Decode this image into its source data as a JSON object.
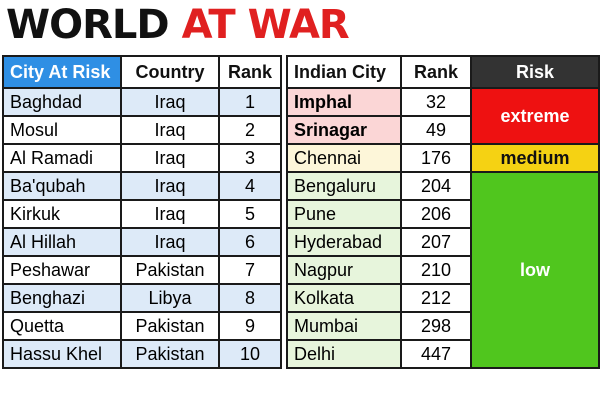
{
  "title": {
    "part1": "WORLD",
    "part2": "AT WAR"
  },
  "left_table": {
    "headers": {
      "city": "City At Risk",
      "country": "Country",
      "rank": "Rank"
    },
    "rows": [
      {
        "city": "Baghdad",
        "country": "Iraq",
        "rank": "1"
      },
      {
        "city": "Mosul",
        "country": "Iraq",
        "rank": "2"
      },
      {
        "city": "Al Ramadi",
        "country": "Iraq",
        "rank": "3"
      },
      {
        "city": "Ba'qubah",
        "country": "Iraq",
        "rank": "4"
      },
      {
        "city": "Kirkuk",
        "country": "Iraq",
        "rank": "5"
      },
      {
        "city": "Al Hillah",
        "country": "Iraq",
        "rank": "6"
      },
      {
        "city": "Peshawar",
        "country": "Pakistan",
        "rank": "7"
      },
      {
        "city": "Benghazi",
        "country": "Libya",
        "rank": "8"
      },
      {
        "city": "Quetta",
        "country": "Pakistan",
        "rank": "9"
      },
      {
        "city": "Hassu Khel",
        "country": "Pakistan",
        "rank": "10"
      }
    ]
  },
  "right_table": {
    "headers": {
      "city": "Indian City",
      "rank": "Rank",
      "risk": "Risk"
    },
    "rows": [
      {
        "city": "Imphal",
        "rank": "32"
      },
      {
        "city": "Srinagar",
        "rank": "49"
      },
      {
        "city": "Chennai",
        "rank": "176"
      },
      {
        "city": "Bengaluru",
        "rank": "204"
      },
      {
        "city": "Pune",
        "rank": "206"
      },
      {
        "city": "Hyderabad",
        "rank": "207"
      },
      {
        "city": "Nagpur",
        "rank": "210"
      },
      {
        "city": "Kolkata",
        "rank": "212"
      },
      {
        "city": "Mumbai",
        "rank": "298"
      },
      {
        "city": "Delhi",
        "rank": "447"
      }
    ],
    "risk_levels": {
      "extreme": "extreme",
      "medium": "medium",
      "low": "low"
    }
  },
  "colors": {
    "title_red": "#e02020",
    "header_blue": "#2f8fe4",
    "risk_header": "#333333",
    "extreme": "#ee1111",
    "medium": "#f5d213",
    "low": "#50c61e"
  }
}
